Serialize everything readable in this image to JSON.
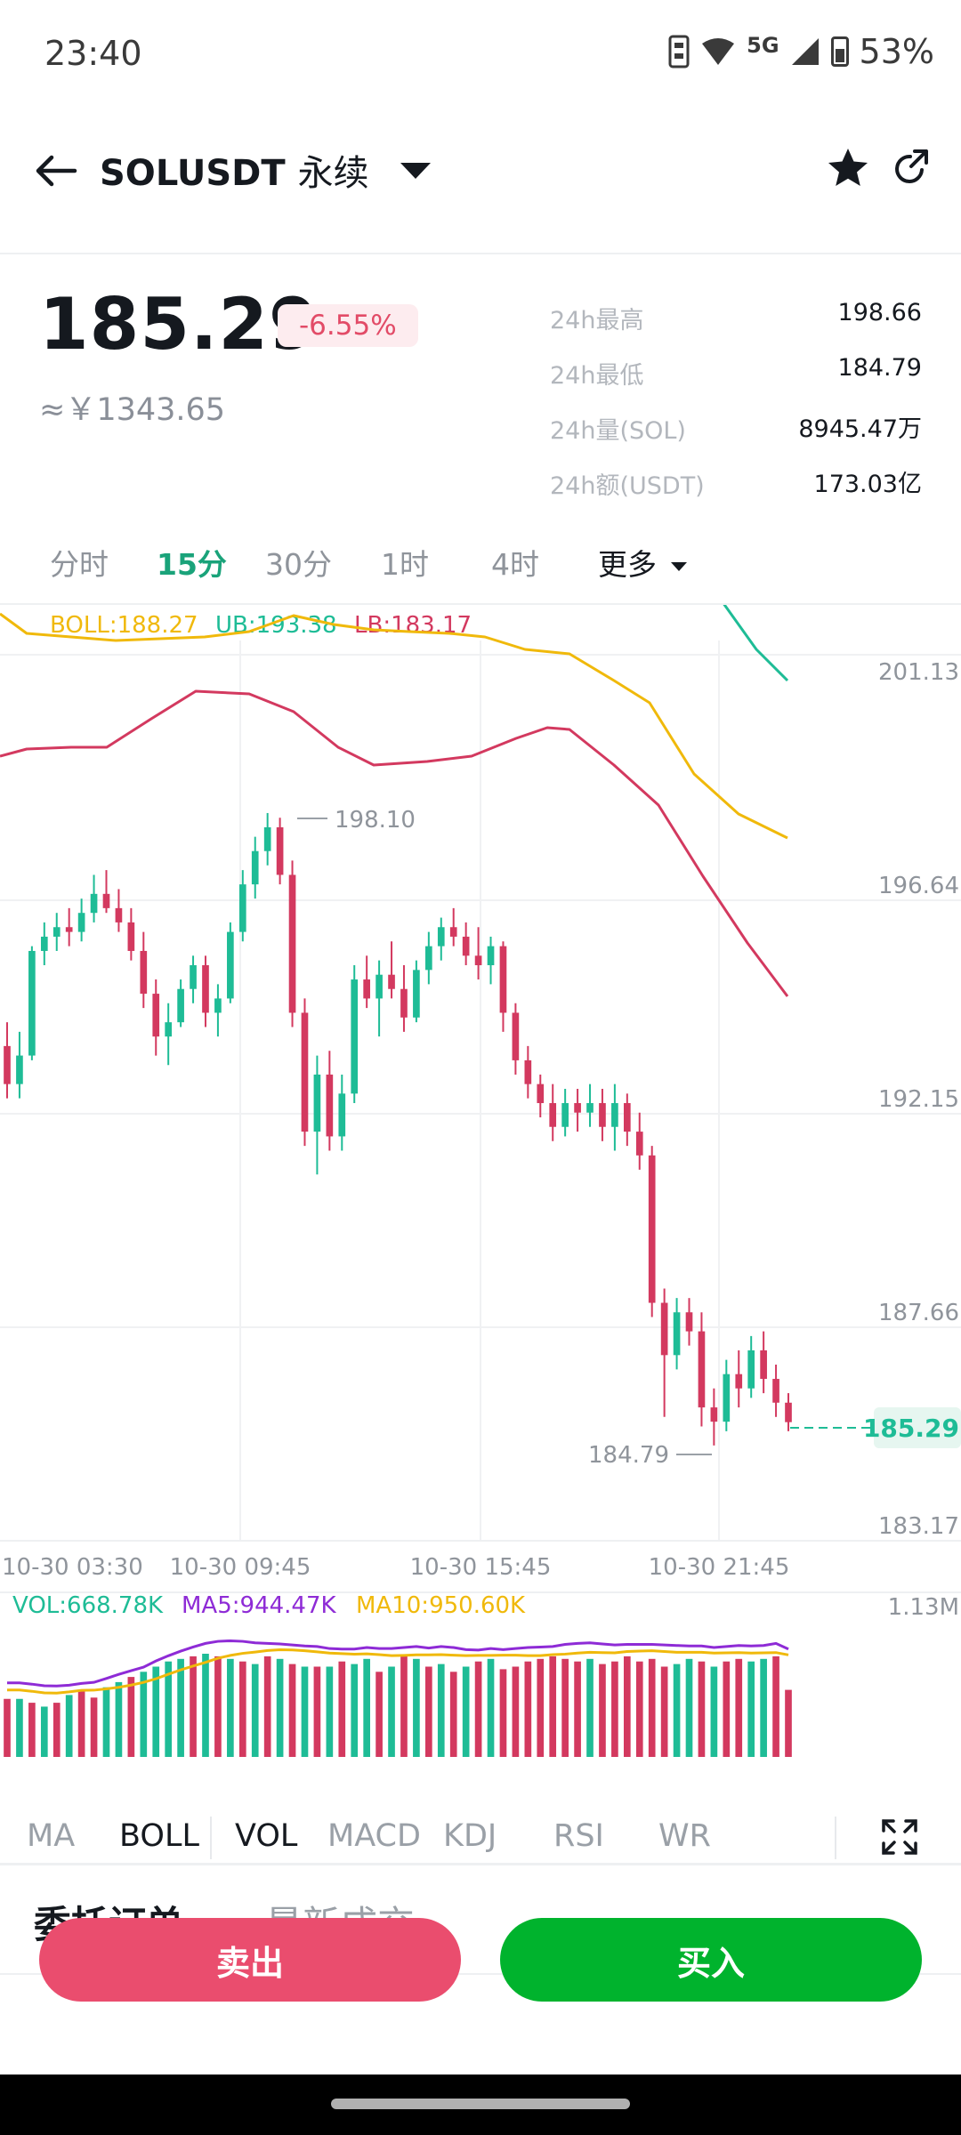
{
  "status_bar": {
    "time": "23:40",
    "network": "5G",
    "battery": "53%",
    "icons": [
      "sim-icon",
      "wifi-icon",
      "signal-icon",
      "battery-icon"
    ]
  },
  "header": {
    "symbol": "SOLUSDT",
    "suffix": "永续",
    "icons": [
      "back-arrow-icon",
      "dropdown-caret-icon",
      "star-icon",
      "share-icon"
    ]
  },
  "price": {
    "last": "185.29",
    "change": "-6.55%",
    "cny": "≈￥1343.65"
  },
  "stats": [
    {
      "label": "24h最高",
      "value": "198.66"
    },
    {
      "label": "24h最低",
      "value": "184.79"
    },
    {
      "label": "24h量(SOL)",
      "value": "8945.47万"
    },
    {
      "label": "24h额(USDT)",
      "value": "173.03亿"
    }
  ],
  "intervals": [
    "分时",
    "15分",
    "30分",
    "1时",
    "4时"
  ],
  "interval_active": "15分",
  "interval_more": "更多",
  "boll": {
    "boll_label": "BOLL:188.27",
    "ub_label": "UB:193.38",
    "lb_label": "LB:183.17"
  },
  "vol_legend": {
    "vol": "VOL:668.78K",
    "ma5": "MA5:944.47K",
    "ma10": "MA10:950.60K",
    "max": "1.13M"
  },
  "colors": {
    "up": "#1ebc96",
    "down": "#d3395f",
    "boll": "#f0b90b",
    "ma5": "#8e2bd6",
    "accent": "#1aa37a"
  },
  "chart_data": {
    "type": "candlestick",
    "y_ticks": [
      "201.13",
      "196.64",
      "192.15",
      "187.66",
      "183.17"
    ],
    "ylim": [
      183.17,
      201.13
    ],
    "x_ticks": [
      "10-30 03:30",
      "10-30 09:45",
      "10-30 15:45",
      "10-30 21:45"
    ],
    "high_marker": "198.10",
    "low_marker": "184.79",
    "current_price": "185.29",
    "ohlc": [
      [
        193.2,
        193.7,
        192.1,
        192.4
      ],
      [
        192.4,
        193.5,
        192.1,
        193.0
      ],
      [
        193.0,
        195.3,
        192.9,
        195.2
      ],
      [
        195.2,
        195.8,
        194.9,
        195.5
      ],
      [
        195.5,
        196.0,
        195.2,
        195.7
      ],
      [
        195.7,
        196.1,
        195.3,
        195.6
      ],
      [
        195.6,
        196.3,
        195.4,
        196.0
      ],
      [
        196.0,
        196.8,
        195.8,
        196.4
      ],
      [
        196.4,
        196.9,
        196.0,
        196.1
      ],
      [
        196.1,
        196.5,
        195.6,
        195.8
      ],
      [
        195.8,
        196.1,
        195.0,
        195.2
      ],
      [
        195.2,
        195.6,
        194.0,
        194.3
      ],
      [
        194.3,
        194.6,
        193.0,
        193.4
      ],
      [
        193.4,
        194.1,
        192.8,
        193.7
      ],
      [
        193.7,
        194.6,
        193.6,
        194.4
      ],
      [
        194.4,
        195.1,
        194.1,
        194.9
      ],
      [
        194.9,
        195.1,
        193.6,
        193.9
      ],
      [
        193.9,
        194.5,
        193.4,
        194.2
      ],
      [
        194.2,
        195.8,
        194.1,
        195.6
      ],
      [
        195.6,
        196.9,
        195.4,
        196.6
      ],
      [
        196.6,
        197.6,
        196.3,
        197.3
      ],
      [
        197.3,
        198.1,
        197.0,
        197.8
      ],
      [
        197.8,
        198.0,
        196.6,
        196.8
      ],
      [
        196.8,
        197.1,
        193.6,
        193.9
      ],
      [
        193.9,
        194.2,
        191.1,
        191.4
      ],
      [
        191.4,
        193.0,
        190.5,
        192.6
      ],
      [
        192.6,
        193.1,
        191.0,
        191.3
      ],
      [
        191.3,
        192.6,
        191.0,
        192.2
      ],
      [
        192.2,
        194.9,
        192.0,
        194.6
      ],
      [
        194.6,
        195.1,
        194.0,
        194.2
      ],
      [
        194.2,
        195.0,
        193.4,
        194.7
      ],
      [
        194.7,
        195.4,
        194.2,
        194.4
      ],
      [
        194.4,
        194.9,
        193.5,
        193.8
      ],
      [
        193.8,
        195.0,
        193.7,
        194.8
      ],
      [
        194.8,
        195.6,
        194.5,
        195.3
      ],
      [
        195.3,
        195.9,
        195.0,
        195.7
      ],
      [
        195.7,
        196.1,
        195.3,
        195.5
      ],
      [
        195.5,
        195.8,
        194.9,
        195.1
      ],
      [
        195.1,
        195.7,
        194.6,
        194.9
      ],
      [
        194.9,
        195.5,
        194.5,
        195.3
      ],
      [
        195.3,
        195.4,
        193.5,
        193.9
      ],
      [
        193.9,
        194.1,
        192.6,
        192.9
      ],
      [
        192.9,
        193.2,
        192.1,
        192.4
      ],
      [
        192.4,
        192.6,
        191.7,
        192.0
      ],
      [
        192.0,
        192.4,
        191.2,
        191.5
      ],
      [
        191.5,
        192.3,
        191.3,
        192.0
      ],
      [
        192.0,
        192.3,
        191.4,
        191.8
      ],
      [
        191.8,
        192.4,
        191.5,
        192.0
      ],
      [
        192.0,
        192.3,
        191.2,
        191.5
      ],
      [
        191.5,
        192.4,
        191.0,
        192.0
      ],
      [
        192.0,
        192.2,
        191.1,
        191.4
      ],
      [
        191.4,
        191.8,
        190.6,
        190.9
      ],
      [
        190.9,
        191.1,
        187.5,
        187.8
      ],
      [
        187.8,
        188.1,
        185.4,
        186.7
      ],
      [
        186.7,
        187.9,
        186.4,
        187.6
      ],
      [
        187.6,
        187.9,
        186.9,
        187.2
      ],
      [
        187.2,
        187.6,
        185.2,
        185.6
      ],
      [
        185.6,
        186.0,
        184.8,
        185.3
      ],
      [
        185.3,
        186.6,
        185.1,
        186.3
      ],
      [
        186.3,
        186.8,
        185.6,
        186.0
      ],
      [
        186.0,
        187.1,
        185.8,
        186.8
      ],
      [
        186.8,
        187.2,
        185.9,
        186.2
      ],
      [
        186.2,
        186.5,
        185.4,
        185.7
      ],
      [
        185.7,
        185.9,
        185.1,
        185.29
      ]
    ],
    "upper_band": [
      [
        0,
        528
      ],
      [
        30,
        585
      ],
      [
        75,
        585
      ],
      [
        120,
        612
      ],
      [
        165,
        648
      ],
      [
        210,
        655
      ],
      [
        250,
        625
      ],
      [
        300,
        585
      ],
      [
        350,
        565
      ],
      [
        410,
        565
      ],
      [
        455,
        580
      ],
      [
        500,
        630
      ],
      [
        545,
        645
      ],
      [
        590,
        635
      ],
      [
        625,
        655
      ],
      [
        665,
        640
      ],
      [
        700,
        650
      ],
      [
        740,
        640
      ],
      [
        775,
        638
      ],
      [
        800,
        660
      ],
      [
        850,
        730
      ],
      [
        885,
        765
      ]
    ],
    "middle_band": [
      [
        0,
        690
      ],
      [
        30,
        712
      ],
      [
        80,
        716
      ],
      [
        130,
        720
      ],
      [
        180,
        718
      ],
      [
        230,
        716
      ],
      [
        280,
        710
      ],
      [
        330,
        692
      ],
      [
        375,
        702
      ],
      [
        420,
        708
      ],
      [
        460,
        710
      ],
      [
        505,
        712
      ],
      [
        545,
        716
      ],
      [
        590,
        730
      ],
      [
        640,
        735
      ],
      [
        690,
        765
      ],
      [
        730,
        790
      ],
      [
        780,
        870
      ],
      [
        830,
        915
      ],
      [
        885,
        942
      ]
    ],
    "lower_band": [
      [
        0,
        850
      ],
      [
        30,
        842
      ],
      [
        80,
        840
      ],
      [
        120,
        840
      ],
      [
        170,
        808
      ],
      [
        220,
        777
      ],
      [
        280,
        780
      ],
      [
        330,
        800
      ],
      [
        380,
        840
      ],
      [
        420,
        860
      ],
      [
        480,
        856
      ],
      [
        530,
        850
      ],
      [
        580,
        830
      ],
      [
        615,
        818
      ],
      [
        640,
        820
      ],
      [
        690,
        860
      ],
      [
        740,
        905
      ],
      [
        790,
        985
      ],
      [
        840,
        1060
      ],
      [
        885,
        1120
      ]
    ],
    "volume": [
      [
        0.45,
        0
      ],
      [
        0.45,
        1
      ],
      [
        0.42,
        0
      ],
      [
        0.39,
        1
      ],
      [
        0.42,
        0
      ],
      [
        0.48,
        1
      ],
      [
        0.52,
        0
      ],
      [
        0.46,
        0
      ],
      [
        0.54,
        1
      ],
      [
        0.58,
        1
      ],
      [
        0.62,
        0
      ],
      [
        0.66,
        1
      ],
      [
        0.7,
        1
      ],
      [
        0.74,
        1
      ],
      [
        0.76,
        1
      ],
      [
        0.78,
        0
      ],
      [
        0.8,
        1
      ],
      [
        0.78,
        0
      ],
      [
        0.76,
        1
      ],
      [
        0.74,
        0
      ],
      [
        0.72,
        1
      ],
      [
        0.78,
        0
      ],
      [
        0.76,
        1
      ],
      [
        0.72,
        0
      ],
      [
        0.7,
        1
      ],
      [
        0.7,
        0
      ],
      [
        0.7,
        1
      ],
      [
        0.74,
        0
      ],
      [
        0.72,
        1
      ],
      [
        0.76,
        1
      ],
      [
        0.66,
        0
      ],
      [
        0.7,
        1
      ],
      [
        0.78,
        0
      ],
      [
        0.76,
        1
      ],
      [
        0.7,
        0
      ],
      [
        0.72,
        1
      ],
      [
        0.66,
        0
      ],
      [
        0.7,
        1
      ],
      [
        0.74,
        0
      ],
      [
        0.76,
        1
      ],
      [
        0.68,
        0
      ],
      [
        0.7,
        0
      ],
      [
        0.74,
        0
      ],
      [
        0.76,
        0
      ],
      [
        0.78,
        0
      ],
      [
        0.76,
        0
      ],
      [
        0.74,
        0
      ],
      [
        0.76,
        1
      ],
      [
        0.72,
        0
      ],
      [
        0.74,
        0
      ],
      [
        0.78,
        0
      ],
      [
        0.74,
        0
      ],
      [
        0.76,
        0
      ],
      [
        0.7,
        0
      ],
      [
        0.72,
        1
      ],
      [
        0.76,
        1
      ],
      [
        0.74,
        0
      ],
      [
        0.7,
        1
      ],
      [
        0.74,
        0
      ],
      [
        0.76,
        0
      ],
      [
        0.74,
        1
      ],
      [
        0.76,
        1
      ],
      [
        0.78,
        0
      ],
      [
        0.52,
        0
      ]
    ]
  },
  "indicator_tabs": [
    "MA",
    "BOLL",
    "VOL",
    "MACD",
    "KDJ",
    "RSI",
    "WR"
  ],
  "indicator_active": [
    "BOLL",
    "VOL"
  ],
  "order_tabs": [
    "委托订单",
    "最新成交"
  ],
  "trade": {
    "sell": "卖出",
    "buy": "买入"
  }
}
